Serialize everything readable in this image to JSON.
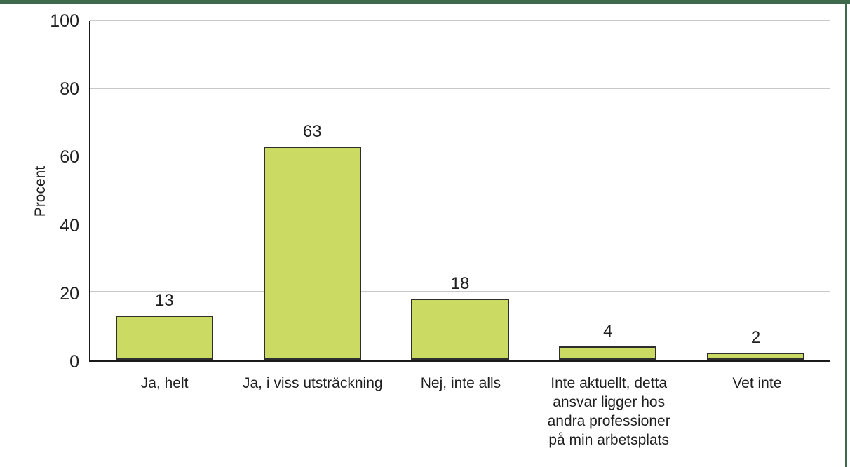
{
  "frame": {
    "background": "#ffffff",
    "top_border_color": "#3e694d",
    "right_border_color": "#3e694d"
  },
  "chart_data": {
    "type": "bar",
    "title": "",
    "xlabel": "",
    "ylabel": "Procent",
    "categories": [
      "Ja, helt",
      "Ja, i viss utsträckning",
      "Nej, inte alls",
      "Inte aktuellt, detta\nansvar ligger hos\nandra professioner\npå min arbetsplats",
      "Vet inte"
    ],
    "values": [
      13,
      63,
      18,
      4,
      2
    ],
    "value_labels": [
      "13",
      "63",
      "18",
      "4",
      "2"
    ],
    "ylim": [
      0,
      100
    ],
    "yticks": [
      0,
      20,
      40,
      60,
      80,
      100
    ],
    "grid": true,
    "legend_position": "none",
    "colors": {
      "bar_fill": "#cbda62",
      "bar_border": "#2e2e2e",
      "axis": "#1a1a1a",
      "gridline": "#c8c8c8",
      "text": "#1f1f1f"
    }
  }
}
